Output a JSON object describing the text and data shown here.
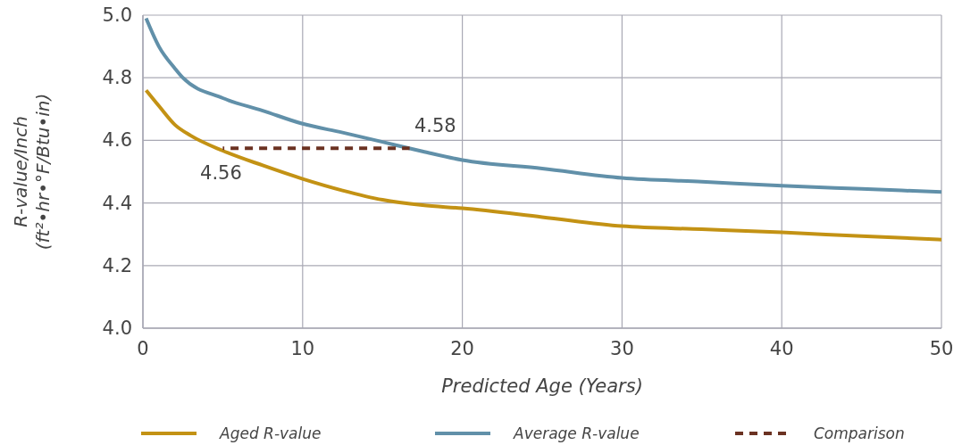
{
  "chart_data": {
    "type": "line",
    "xlabel": "Predicted Age (Years)",
    "ylabel": "R-value/Inch\n(ft²•hr•°F/Btu•in)",
    "xlim": [
      0,
      50
    ],
    "xticks": [
      0,
      10,
      20,
      30,
      40,
      50
    ],
    "ylim": [
      4.0,
      5.0
    ],
    "yticks": [
      {
        "value": 4.0,
        "label": "4.0"
      },
      {
        "value": 4.2,
        "label": "4.2"
      },
      {
        "value": 4.4,
        "label": "4.4"
      },
      {
        "value": 4.6,
        "label": "4.6"
      },
      {
        "value": 4.8,
        "label": "4.8"
      },
      {
        "value": 5.0,
        "label": "5.0"
      }
    ],
    "grid": true,
    "legend": "bottom",
    "marker": "none",
    "series": [
      {
        "name": "Aged R-value",
        "color": "#c39214",
        "x": [
          0.2,
          1,
          2,
          3,
          5,
          7.5,
          10,
          12.5,
          15,
          17.5,
          20,
          25,
          30,
          35,
          40,
          45,
          50
        ],
        "values": [
          4.76,
          4.71,
          4.65,
          4.615,
          4.567,
          4.52,
          4.477,
          4.44,
          4.41,
          4.393,
          4.383,
          4.355,
          4.326,
          4.316,
          4.306,
          4.294,
          4.283
        ]
      },
      {
        "name": "Average R-value",
        "color": "#6190a9",
        "x": [
          0.2,
          1,
          2,
          2.5,
          5,
          7.5,
          10,
          12.5,
          15,
          17.5,
          20,
          25,
          30,
          35,
          40,
          45,
          50
        ],
        "values": [
          4.99,
          4.9,
          4.83,
          4.8,
          4.735,
          4.695,
          4.653,
          4.625,
          4.595,
          4.565,
          4.537,
          4.51,
          4.48,
          4.468,
          4.455,
          4.445,
          4.435
        ]
      },
      {
        "name": "Comparison",
        "color": "#6b3222",
        "type": "line",
        "line_style": "dashed",
        "x": [
          5,
          16.7
        ],
        "values": [
          4.575,
          4.575
        ]
      }
    ],
    "annotations": [
      {
        "text": "4.56",
        "x": 5,
        "y": 4.56
      },
      {
        "text": "4.58",
        "x": 17,
        "y": 4.58
      }
    ]
  }
}
